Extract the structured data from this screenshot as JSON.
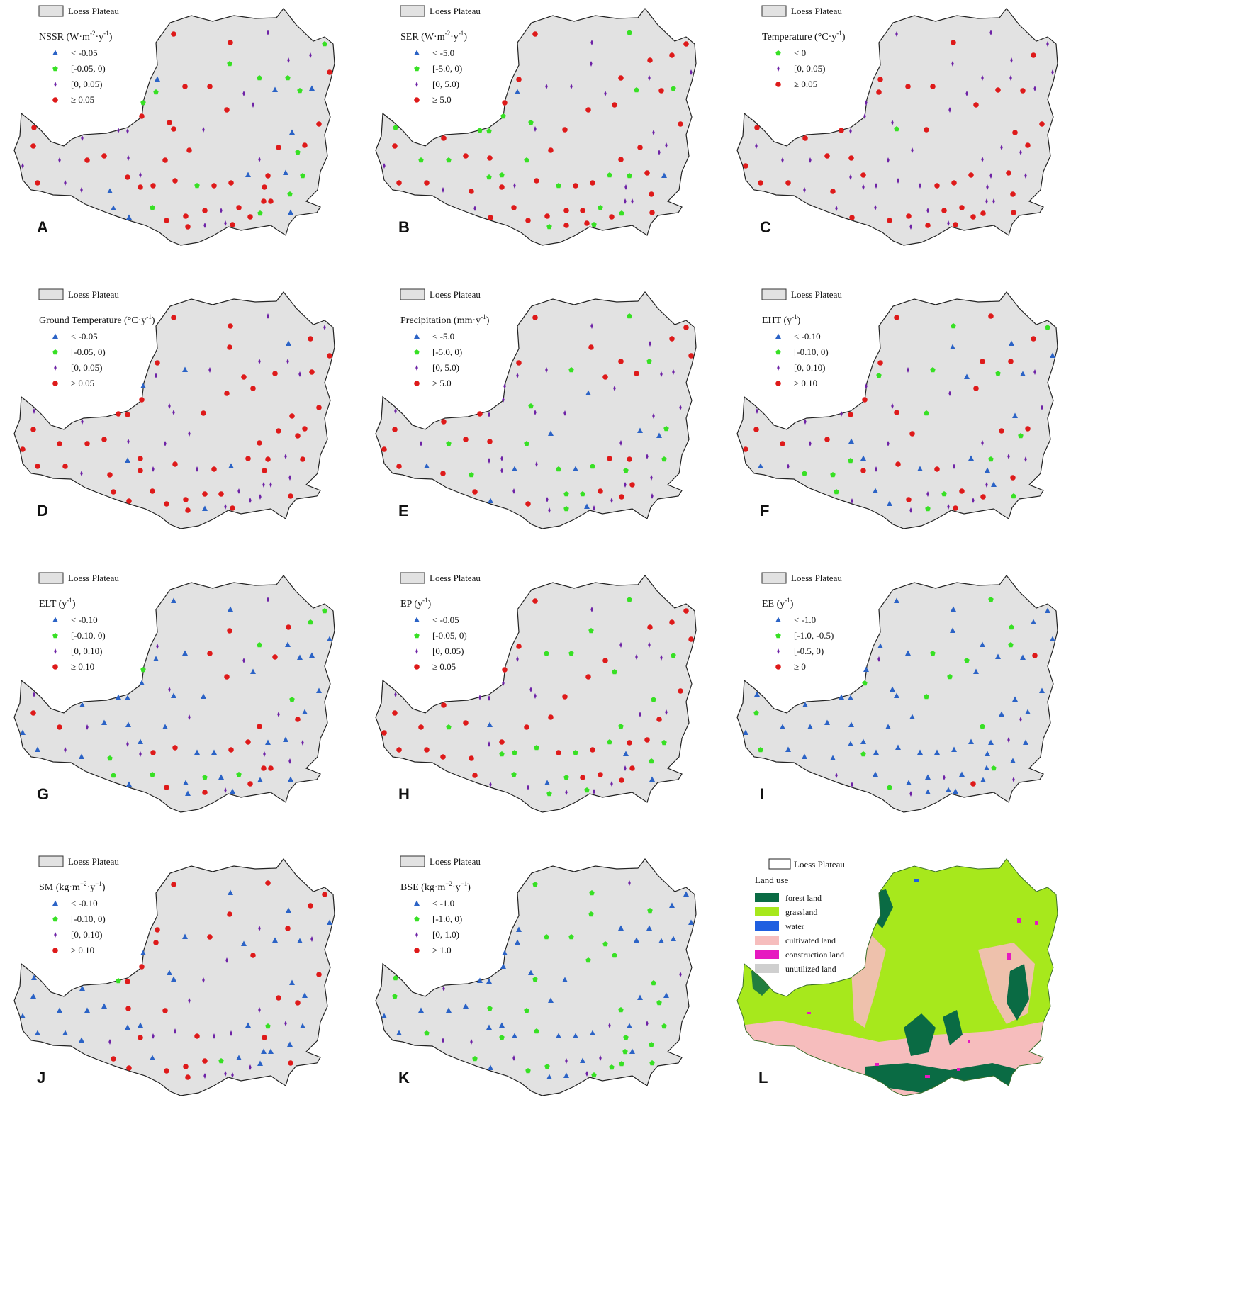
{
  "region_label": "Loess Plateau",
  "colors": {
    "region_fill": "#e2e2e2",
    "region_stroke": "#222222",
    "triangle": "#2b63c6",
    "pentagon": "#37e024",
    "diamond": "#6e23a6",
    "circle": "#de1a1a"
  },
  "symbols": {
    "legend_order": [
      "triangle",
      "pentagon",
      "diamond",
      "circle"
    ]
  },
  "panels": [
    {
      "letter": "A",
      "title_main": "NSSR (W·m",
      "sup1": "-2",
      "title_mid": "·y",
      "sup2": "-1",
      "title_end": ")",
      "classes": [
        "< -0.05",
        "[-0.05, 0)",
        "[0, 0.05)",
        "≥ 0.05"
      ],
      "shares": {
        "triangle": 0.12,
        "pentagon": 0.14,
        "diamond": 0.3,
        "circle": 0.44
      }
    },
    {
      "letter": "B",
      "title_main": "SER (W·m",
      "sup1": "-2",
      "title_mid": "·y",
      "sup2": "-1",
      "title_end": ")",
      "classes": [
        "< -5.0",
        "[-5.0, 0)",
        "[0, 5.0)",
        "≥ 5.0"
      ],
      "shares": {
        "triangle": 0.05,
        "pentagon": 0.3,
        "diamond": 0.28,
        "circle": 0.37
      }
    },
    {
      "letter": "C",
      "title_main": "Temperature (°C·y",
      "sup1": "-1",
      "title_mid": "",
      "sup2": "",
      "title_end": ")",
      "classes": [
        "< 0",
        "[0, 0.05)",
        "≥ 0.05"
      ],
      "shares": {
        "pentagon": 0.05,
        "diamond": 0.45,
        "circle": 0.5
      }
    },
    {
      "letter": "D",
      "title_main": "Ground Temperature (°C·y",
      "sup1": "-1",
      "title_mid": "",
      "sup2": "",
      "title_end": ")",
      "classes": [
        "< -0.05",
        "[-0.05, 0)",
        "[0, 0.05)",
        "≥ 0.05"
      ],
      "shares": {
        "triangle": 0.07,
        "pentagon": 0.03,
        "diamond": 0.3,
        "circle": 0.6
      }
    },
    {
      "letter": "E",
      "title_main": "Precipitation (mm·y",
      "sup1": "-1",
      "title_mid": "",
      "sup2": "",
      "title_end": ")",
      "classes": [
        "< -5.0",
        "[-5.0, 0)",
        "[0, 5.0)",
        "≥ 5.0"
      ],
      "shares": {
        "triangle": 0.1,
        "pentagon": 0.22,
        "diamond": 0.32,
        "circle": 0.36
      }
    },
    {
      "letter": "F",
      "title_main": "EHT (y",
      "sup1": "-1",
      "title_mid": "",
      "sup2": "",
      "title_end": ")",
      "classes": [
        "< -0.10",
        "[-0.10, 0)",
        "[0, 0.10)",
        "≥ 0.10"
      ],
      "shares": {
        "triangle": 0.25,
        "pentagon": 0.22,
        "diamond": 0.25,
        "circle": 0.28
      }
    },
    {
      "letter": "G",
      "title_main": "ELT (y",
      "sup1": "-1",
      "title_mid": "",
      "sup2": "",
      "title_end": ")",
      "classes": [
        "< -0.10",
        "[-0.10, 0)",
        "[0, 0.10)",
        "≥ 0.10"
      ],
      "shares": {
        "triangle": 0.4,
        "pentagon": 0.18,
        "diamond": 0.25,
        "circle": 0.17
      }
    },
    {
      "letter": "H",
      "title_main": "EP (y",
      "sup1": "-1",
      "title_mid": "",
      "sup2": "",
      "title_end": ")",
      "classes": [
        "< -0.05",
        "[-0.05, 0)",
        "[0, 0.05)",
        "≥ 0.05"
      ],
      "shares": {
        "triangle": 0.07,
        "pentagon": 0.25,
        "diamond": 0.3,
        "circle": 0.38
      }
    },
    {
      "letter": "I",
      "title_main": "EE (y",
      "sup1": "-1",
      "title_mid": "",
      "sup2": "",
      "title_end": ")",
      "classes": [
        "< -1.0",
        "[-1.0, -0.5)",
        "[-0.5, 0)",
        "≥ 0"
      ],
      "shares": {
        "triangle": 0.78,
        "pentagon": 0.12,
        "diamond": 0.07,
        "circle": 0.03
      }
    },
    {
      "letter": "J",
      "title_main": "SM (kg·m",
      "sup1": "−2",
      "title_mid": "·y",
      "sup2": "−1",
      "title_end": ")",
      "classes": [
        "< -0.10",
        "[-0.10, 0)",
        "[0, 0.10)",
        "≥ 0.10"
      ],
      "shares": {
        "triangle": 0.35,
        "pentagon": 0.08,
        "diamond": 0.2,
        "circle": 0.37
      }
    },
    {
      "letter": "K",
      "title_main": "BSE (kg·m",
      "sup1": "−2",
      "title_mid": "·y",
      "sup2": "−1",
      "title_end": ")",
      "classes": [
        "< -1.0",
        "[-1.0, 0)",
        "[0, 1.0)",
        "≥ 1.0"
      ],
      "shares": {
        "triangle": 0.5,
        "pentagon": 0.35,
        "diamond": 0.13,
        "circle": 0.02
      }
    }
  ],
  "landuse_panel": {
    "letter": "L",
    "title": "Land use",
    "classes": [
      {
        "label": "forest land",
        "color": "#0a6b44"
      },
      {
        "label": "grassland",
        "color": "#a7e81c"
      },
      {
        "label": "water",
        "color": "#1f5fe0"
      },
      {
        "label": "cultivated land",
        "color": "#f6bdbd"
      },
      {
        "label": "construction land",
        "color": "#e619c0"
      },
      {
        "label": "unutilized land",
        "color": "#cfcfcf"
      }
    ]
  }
}
